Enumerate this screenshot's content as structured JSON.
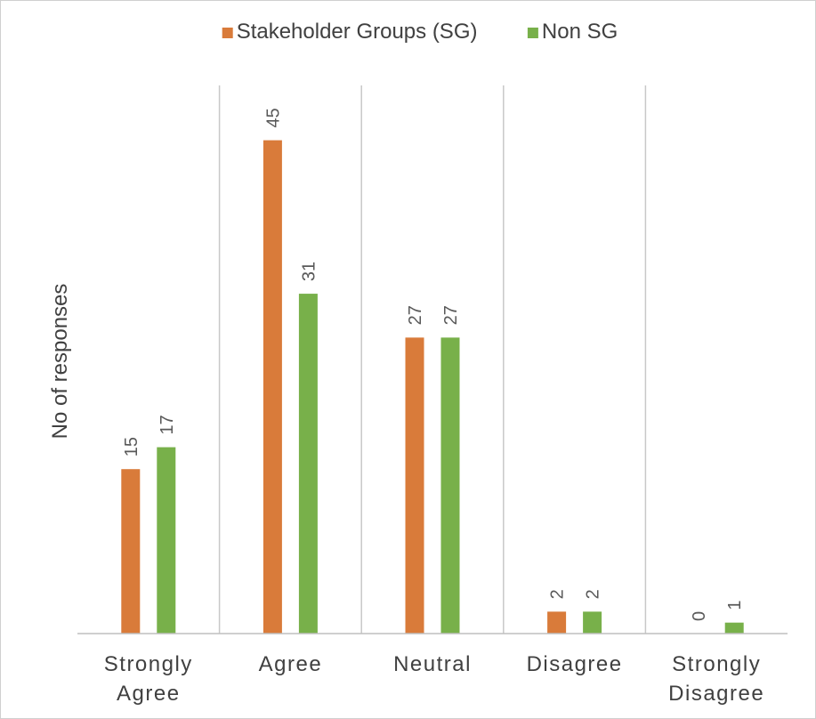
{
  "chart_data": {
    "type": "bar",
    "title": "",
    "xlabel": "",
    "ylabel": "No of responses",
    "ylim": [
      0,
      50
    ],
    "grid": false,
    "legend_position": "top",
    "categories": [
      [
        "Strongly",
        "Agree"
      ],
      [
        "Agree"
      ],
      [
        "Neutral"
      ],
      [
        "Disagree"
      ],
      [
        "Strongly",
        "Disagree"
      ]
    ],
    "series": [
      {
        "name": "Stakeholder Groups (SG)",
        "color": "#d97b3a",
        "values": [
          15,
          45,
          27,
          2,
          0
        ]
      },
      {
        "name": "Non SG",
        "color": "#78b04a",
        "values": [
          17,
          31,
          27,
          2,
          1
        ]
      }
    ],
    "separator_color": "#c8c8c8",
    "axis_color": "#bfbfbf"
  }
}
